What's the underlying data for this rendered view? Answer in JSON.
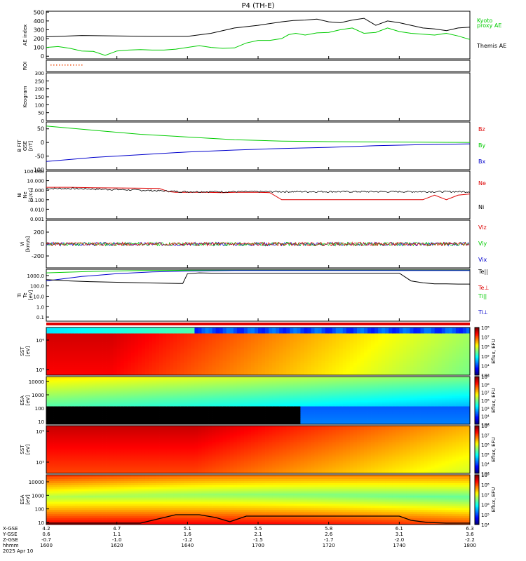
{
  "title": "P4 (TH-E)",
  "colors": {
    "black": "#000000",
    "green": "#00cc00",
    "red": "#dd0000",
    "blue": "#0000cc"
  },
  "panels": {
    "ae": {
      "ylabel": "AE index",
      "ticks": [
        "500",
        "400",
        "300",
        "200",
        "100",
        "0"
      ],
      "legend": [
        "Kyoto",
        "proxy AE",
        "Themis AE"
      ]
    },
    "roi": {
      "ylabel": "ROI"
    },
    "keogram": {
      "ylabel": "Keogram",
      "ticks": [
        "300",
        "250",
        "200",
        "150",
        "100",
        "50",
        "0"
      ]
    },
    "bfield": {
      "ylabel": [
        "B FIT",
        "GSE",
        "[nT]"
      ],
      "ticks": [
        "50",
        "0",
        "-50",
        "-100"
      ],
      "legend": [
        "Bz",
        "By",
        "Bx"
      ]
    },
    "density": {
      "ylabel": [
        "Ni",
        "Ne",
        "[1/cc]"
      ],
      "ticks": [
        "100.000",
        "10.000",
        "1.000",
        "0.100",
        "0.010",
        "0.001"
      ],
      "legend": [
        "Ne",
        "Ni"
      ]
    },
    "velocity": {
      "ylabel": [
        "Vi",
        "[km/s]"
      ],
      "ticks": [
        "200",
        "0",
        "-200"
      ],
      "legend": [
        "Viz",
        "Viy",
        "Vix"
      ]
    },
    "temp": {
      "ylabel": [
        "Ti",
        "Te",
        "[eV]"
      ],
      "ticks": [
        "1000.0",
        "100.0",
        "10.0",
        "1.0",
        "0.1"
      ],
      "legend": [
        "Te||",
        "Te⊥",
        "Ti||",
        "Ti⊥"
      ]
    },
    "sst_e": {
      "ylabel": [
        "SST",
        "[eV]"
      ],
      "ticks": [
        "10⁶",
        "10⁵"
      ],
      "cbar_ticks": [
        "10⁸",
        "10⁷",
        "10⁶",
        "10⁵",
        "10⁴",
        "10³"
      ],
      "cbar_label": "Eflux, EFU"
    },
    "esa_e": {
      "ylabel": [
        "ESA",
        "[eV]"
      ],
      "ticks": [
        "10000",
        "1000",
        "100",
        "10"
      ],
      "cbar_ticks": [
        "10⁹",
        "10⁸",
        "10⁷",
        "10⁶",
        "10⁵",
        "10⁴",
        "10³"
      ],
      "cbar_label": "Eflux, EFU"
    },
    "sst_i": {
      "ylabel": [
        "SST",
        "[eV]"
      ],
      "ticks": [
        "10⁶",
        "10⁵"
      ],
      "cbar_ticks": [
        "10⁸",
        "10⁷",
        "10⁶",
        "10⁵",
        "10⁴",
        "10³"
      ],
      "cbar_label": "Eflux, EFU"
    },
    "esa_i": {
      "ylabel": [
        "ESA",
        "[eV]"
      ],
      "ticks": [
        "10000",
        "1000",
        "100",
        "10"
      ],
      "cbar_ticks": [
        "10⁹",
        "10⁸",
        "10⁷",
        "10⁶",
        "10⁵",
        "10⁴"
      ],
      "cbar_label": "Eflux, EFU"
    }
  },
  "footer": {
    "row_labels": [
      "X-GSE",
      "Y-GSE",
      "Z-GSE",
      "hhmm",
      "2025 Apr 10"
    ],
    "columns": [
      {
        "x": "4.2",
        "y": "0.6",
        "z": "-0.7",
        "t": "1600"
      },
      {
        "x": "4.7",
        "y": "1.1",
        "z": "-1.0",
        "t": "1620"
      },
      {
        "x": "5.1",
        "y": "1.6",
        "z": "-1.2",
        "t": "1640"
      },
      {
        "x": "5.5",
        "y": "2.1",
        "z": "-1.5",
        "t": "1700"
      },
      {
        "x": "5.8",
        "y": "2.6",
        "z": "-1.7",
        "t": "1720"
      },
      {
        "x": "6.1",
        "y": "3.1",
        "z": "-2.0",
        "t": "1740"
      },
      {
        "x": "6.3",
        "y": "3.6",
        "z": "-2.2",
        "t": "1800"
      }
    ]
  },
  "chart_data": {
    "type": "line",
    "title": "P4 (TH-E)",
    "x_label": "hhmm",
    "x_range": [
      1600,
      1800
    ],
    "series_ae": [
      {
        "name": "Themis AE",
        "x": [
          0,
          15,
          30,
          45,
          60,
          70,
          80,
          90,
          95,
          100,
          105,
          110,
          115,
          120,
          125,
          130,
          135,
          140,
          145,
          150,
          155,
          160,
          165,
          170,
          175,
          180
        ],
        "values": [
          220,
          235,
          230,
          225,
          225,
          260,
          320,
          350,
          370,
          390,
          405,
          410,
          420,
          390,
          380,
          410,
          430,
          350,
          400,
          380,
          350,
          320,
          310,
          290,
          320,
          330
        ]
      },
      {
        "name": "Kyoto proxy AE",
        "x": [
          0,
          5,
          10,
          15,
          20,
          25,
          30,
          35,
          40,
          45,
          50,
          55,
          60,
          65,
          70,
          75,
          80,
          85,
          90,
          95,
          100,
          103,
          106,
          110,
          115,
          120,
          125,
          130,
          135,
          140,
          145,
          150,
          155,
          160,
          165,
          170,
          175,
          180
        ],
        "values": [
          100,
          110,
          90,
          60,
          55,
          10,
          60,
          70,
          75,
          70,
          70,
          80,
          100,
          120,
          100,
          90,
          95,
          150,
          180,
          180,
          200,
          245,
          260,
          240,
          265,
          270,
          300,
          320,
          260,
          270,
          320,
          280,
          260,
          250,
          240,
          260,
          230,
          190
        ]
      }
    ],
    "series_b": [
      {
        "name": "By",
        "x": [
          0,
          20,
          40,
          60,
          80,
          100,
          120,
          140,
          160,
          180
        ],
        "values": [
          60,
          45,
          30,
          20,
          10,
          5,
          3,
          2,
          1,
          0
        ]
      },
      {
        "name": "Bx",
        "x": [
          0,
          20,
          40,
          60,
          80,
          100,
          120,
          140,
          160,
          180
        ],
        "values": [
          -70,
          -55,
          -45,
          -35,
          -28,
          -22,
          -18,
          -12,
          -8,
          -5
        ]
      }
    ],
    "series_n": [
      {
        "name": "Ne",
        "x": [
          0,
          5,
          10,
          20,
          40,
          48,
          52,
          55,
          60,
          68,
          75,
          80,
          85,
          90,
          95,
          100,
          110,
          120,
          130,
          140,
          150,
          160,
          165,
          170,
          175,
          180
        ],
        "values": [
          2.0,
          2.0,
          2.0,
          1.8,
          1.6,
          1.5,
          0.7,
          0.6,
          0.6,
          0.6,
          0.55,
          0.6,
          0.6,
          0.6,
          0.55,
          0.1,
          0.1,
          0.1,
          0.1,
          0.1,
          0.1,
          0.1,
          0.3,
          0.1,
          0.3,
          0.4
        ]
      },
      {
        "name": "Ni",
        "x": [
          0,
          10,
          20,
          40,
          60,
          80,
          100,
          120,
          140,
          160,
          180
        ],
        "values": [
          1.5,
          1.4,
          1.1,
          0.9,
          0.8,
          0.7,
          0.7,
          0.7,
          0.7,
          0.7,
          0.7
        ]
      }
    ],
    "series_t": [
      {
        "name": "Ti||",
        "x": [
          0,
          20,
          40,
          60,
          80,
          100,
          120,
          140,
          160,
          180
        ],
        "values": [
          1800,
          2500,
          3000,
          3200,
          3200,
          3200,
          3200,
          3200,
          3200,
          3200
        ]
      },
      {
        "name": "Ti⊥",
        "x": [
          0,
          15,
          30,
          45,
          60,
          80,
          100,
          120,
          140,
          160,
          180
        ],
        "values": [
          300,
          800,
          1500,
          2200,
          2700,
          3000,
          3000,
          3000,
          3000,
          3000,
          3000
        ]
      },
      {
        "name": "Te||",
        "x": [
          0,
          10,
          20,
          40,
          50,
          58,
          60,
          65,
          70,
          90,
          100,
          110,
          120,
          130,
          140,
          150,
          155,
          160,
          165,
          170,
          175,
          180
        ],
        "values": [
          400,
          300,
          250,
          200,
          180,
          170,
          1500,
          1800,
          1700,
          1700,
          1700,
          1700,
          1700,
          1700,
          1700,
          1700,
          300,
          200,
          160,
          160,
          150,
          150
        ]
      }
    ],
    "colorbar_range": [
      3,
      9
    ]
  }
}
